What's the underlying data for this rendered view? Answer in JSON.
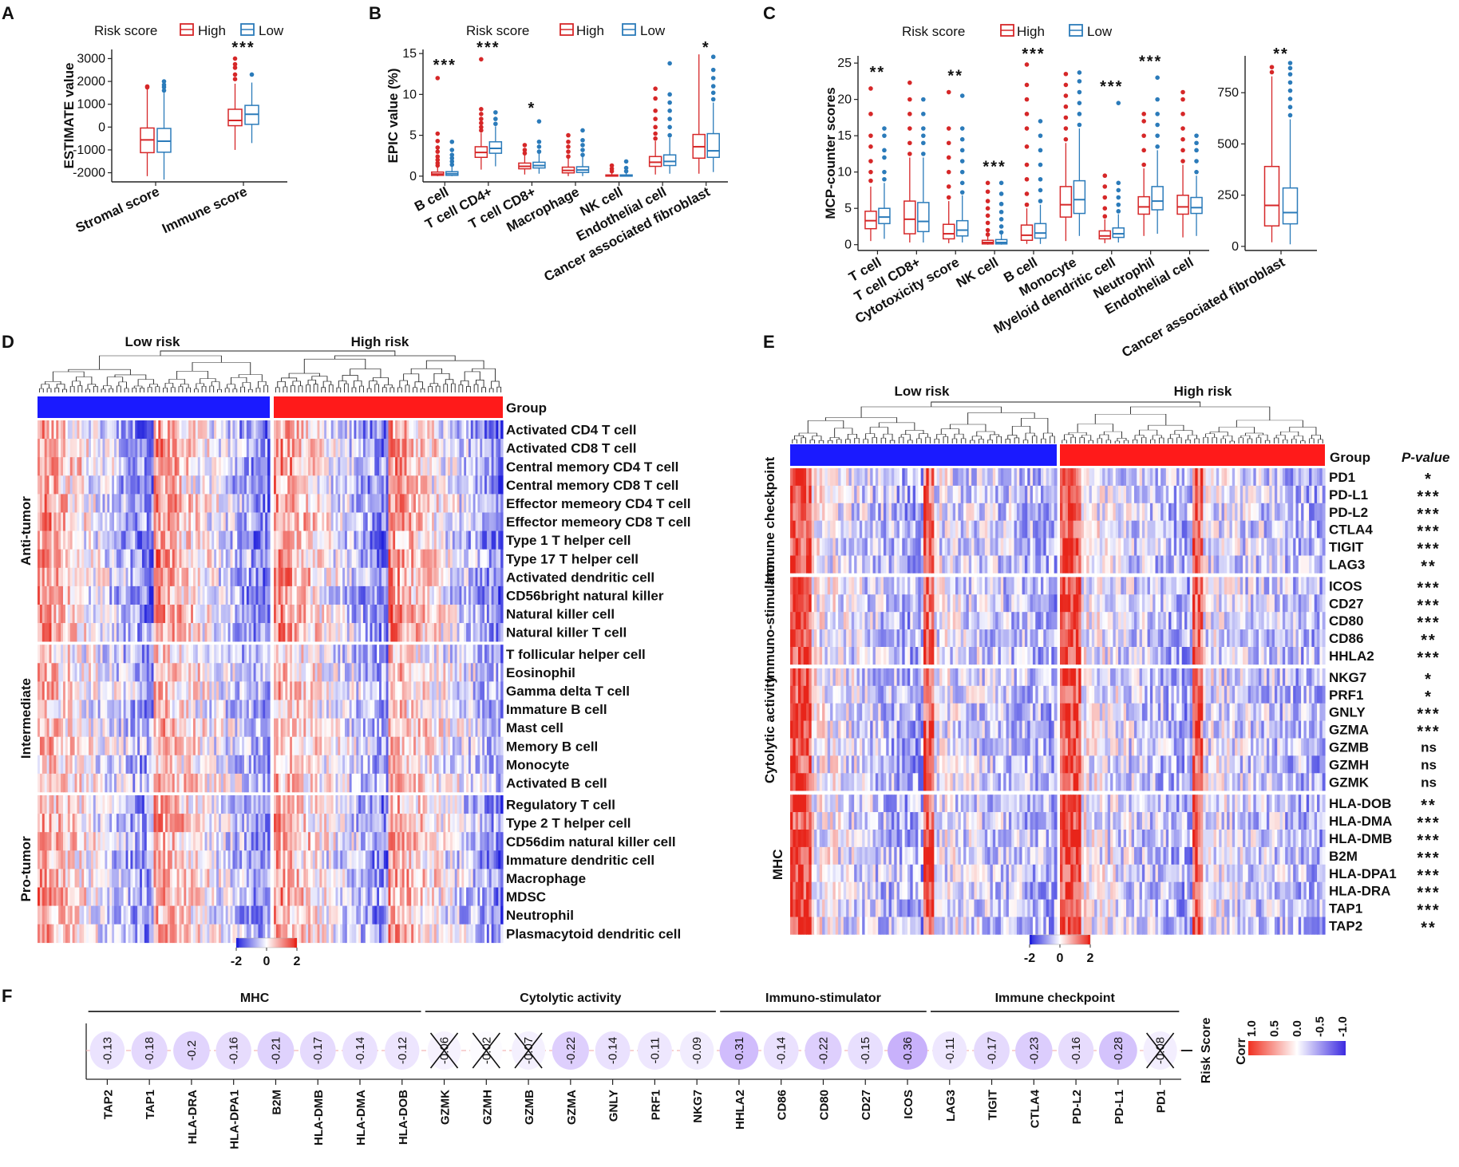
{
  "colors": {
    "high": "#d62728",
    "low": "#2b7bba",
    "hm_neg": "#2222dd",
    "hm_mid": "#ffffff",
    "hm_pos": "#e8251a"
  },
  "legend": {
    "title": "Risk score",
    "high": "High",
    "low": "Low"
  },
  "panels": {
    "a": "A",
    "b": "B",
    "c": "C",
    "d": "D",
    "e": "E",
    "f": "F"
  },
  "chart_data": [
    {
      "id": "A",
      "type": "box",
      "ylabel": "ESTIMATE value",
      "yticks": [
        -2000,
        -1000,
        0,
        1000,
        2000,
        3000
      ],
      "ylim": [
        -2400,
        3400
      ],
      "categories": [
        "Stromal score",
        "Immune score"
      ],
      "series": [
        {
          "name": "High",
          "boxes": [
            [
              -2150,
              -1120,
              -560,
              -40,
              1700
            ],
            [
              -1000,
              60,
              290,
              780,
              1900
            ]
          ],
          "outliers": [
            [
              1780,
              1740
            ],
            [
              2100,
              2300,
              2600,
              2750,
              3000
            ]
          ]
        },
        {
          "name": "Low",
          "boxes": [
            [
              -2300,
              -1100,
              -620,
              -60,
              1500
            ],
            [
              -700,
              120,
              560,
              950,
              1950
            ]
          ],
          "outliers": [
            [
              1600,
              1750,
              1850,
              2000
            ],
            [
              2300
            ]
          ]
        }
      ],
      "significance": [
        "",
        "***"
      ]
    },
    {
      "id": "B",
      "type": "box",
      "ylabel": "EPIC value (%)",
      "yticks": [
        0,
        5,
        10,
        15
      ],
      "ylim": [
        -0.7,
        15.5
      ],
      "categories": [
        "B cell",
        "T cell CD4+",
        "T cell CD8+",
        "Macrophage",
        "NK cell",
        "Endothelial cell",
        "Cancer associated fibroblast"
      ],
      "series": [
        {
          "name": "High",
          "boxes": [
            [
              0,
              0.1,
              0.25,
              0.5,
              1.2
            ],
            [
              0.8,
              2.3,
              2.9,
              3.6,
              5.3
            ],
            [
              0.2,
              0.9,
              1.2,
              1.6,
              2.6
            ],
            [
              0,
              0.4,
              0.7,
              1.1,
              2.2
            ],
            [
              0,
              0,
              0.05,
              0.15,
              0.4
            ],
            [
              0.2,
              1.2,
              1.7,
              2.4,
              4.3
            ],
            [
              0.3,
              2.2,
              3.6,
              5.1,
              14.9
            ]
          ]
        },
        {
          "name": "Low",
          "boxes": [
            [
              0,
              0.1,
              0.3,
              0.55,
              1.2
            ],
            [
              1.2,
              2.8,
              3.4,
              4.2,
              6.1
            ],
            [
              0.3,
              1.0,
              1.3,
              1.7,
              2.8
            ],
            [
              0,
              0.45,
              0.75,
              1.15,
              2.4
            ],
            [
              0,
              0,
              0.05,
              0.15,
              0.4
            ],
            [
              0.3,
              1.3,
              1.8,
              2.6,
              4.7
            ],
            [
              0.5,
              2.3,
              3.1,
              5.2,
              9.0
            ]
          ]
        }
      ],
      "outliers": {
        "High": [
          [
            1.3,
            1.6,
            2.0,
            2.4,
            3.0,
            3.5,
            4.3,
            5.2,
            12.0
          ],
          [
            5.6,
            6.0,
            6.5,
            7.0,
            7.6,
            8.2,
            14.3
          ],
          [
            2.8,
            3.2,
            3.8
          ],
          [
            2.4,
            3.0,
            3.6,
            4.2,
            5.0
          ],
          [
            0.6,
            0.9,
            1.3
          ],
          [
            4.6,
            5.2,
            6.0,
            7.0,
            8.0,
            9.5,
            10.7
          ],
          []
        ],
        "Low": [
          [
            1.4,
            1.8,
            2.2,
            2.6,
            3.2,
            4.2
          ],
          [
            6.4,
            7.0,
            7.8
          ],
          [
            3.0,
            3.6,
            4.2,
            6.7
          ],
          [
            2.6,
            3.2,
            3.8,
            4.4,
            5.6
          ],
          [
            0.6,
            1.0,
            1.8
          ],
          [
            5.0,
            6.0,
            7.0,
            8.0,
            9.0,
            10.0,
            13.8
          ],
          [
            9.4,
            10.2,
            11.0,
            12.0,
            13.0,
            14.6
          ]
        ]
      },
      "significance": [
        "***",
        "***",
        "*",
        "",
        "",
        "",
        "*"
      ]
    },
    {
      "id": "C",
      "type": "box",
      "ylabel": "MCP-counter scores",
      "yticks": [
        0,
        5,
        10,
        15,
        20,
        25
      ],
      "ylim": [
        -0.8,
        26
      ],
      "categories": [
        "T cell",
        "T cell CD8+",
        "Cytotoxicity score",
        "NK cell",
        "B cell",
        "Monocyte",
        "Myeloid dendritic cell",
        "Neutrophil",
        "Endothelial cell"
      ],
      "series": [
        {
          "name": "High",
          "boxes": [
            [
              0.5,
              2.2,
              3.3,
              4.6,
              8.0
            ],
            [
              0.3,
              1.5,
              3.5,
              6.0,
              12.0
            ],
            [
              0.2,
              0.8,
              1.5,
              2.8,
              6.0
            ],
            [
              0,
              0.1,
              0.3,
              0.6,
              1.2
            ],
            [
              0.1,
              0.6,
              1.3,
              2.7,
              5.0
            ],
            [
              0.5,
              3.8,
              5.5,
              8.0,
              14.0
            ],
            [
              0.2,
              0.8,
              1.2,
              1.9,
              3.5
            ],
            [
              1.2,
              4.2,
              5.2,
              6.6,
              10.5
            ],
            [
              1.0,
              4.2,
              5.2,
              6.8,
              11.0
            ]
          ]
        },
        {
          "name": "Low",
          "boxes": [
            [
              0.8,
              2.9,
              3.8,
              5.0,
              8.5
            ],
            [
              0.3,
              1.8,
              3.2,
              5.8,
              12.0
            ],
            [
              0.3,
              1.2,
              2.0,
              3.3,
              6.8
            ],
            [
              0,
              0.1,
              0.3,
              0.7,
              1.5
            ],
            [
              0.1,
              0.9,
              1.6,
              2.9,
              5.5
            ],
            [
              1.2,
              4.3,
              6.2,
              8.8,
              16.0
            ],
            [
              0.3,
              1.0,
              1.5,
              2.3,
              4.2
            ],
            [
              1.5,
              4.8,
              6.0,
              8.0,
              13.0
            ],
            [
              1.2,
              4.3,
              5.1,
              6.5,
              9.5
            ]
          ]
        }
      ],
      "outliers": {
        "High": [
          [
            8.8,
            10.0,
            11.5,
            13.5,
            15.0,
            18.0,
            21.5
          ],
          [
            12.5,
            14.0,
            16.0,
            18.0,
            20.0,
            22.3
          ],
          [
            6.5,
            8.0,
            10.0,
            12.0,
            14.0,
            16.0,
            21.0
          ],
          [
            1.4,
            2.0,
            3.0,
            4.0,
            5.0,
            6.0,
            7.3,
            8.5
          ],
          [
            5.5,
            7.0,
            9.0,
            11.0,
            13.5,
            16.0,
            18.0,
            20.0,
            22.0,
            24.8
          ],
          [
            14.5,
            16.0,
            17.5,
            19.0,
            20.5,
            22.0,
            23.5
          ],
          [
            3.9,
            5.0,
            6.5,
            8.0,
            9.5
          ],
          [
            11.0,
            13.0,
            15.0,
            17.0,
            18.0
          ],
          [
            11.5,
            13.0,
            14.5,
            16.0,
            18.0,
            20.0,
            21.0
          ]
        ],
        "Low": [
          [
            9.0,
            10.0,
            12.0,
            13.0,
            15.0,
            16.0
          ],
          [
            12.5,
            14.0,
            15.0,
            16.0,
            18.0,
            20.0
          ],
          [
            7.2,
            8.5,
            10.0,
            11.5,
            13.0,
            14.5,
            16.0,
            20.5
          ],
          [
            1.7,
            2.5,
            3.5,
            4.5,
            5.6,
            7.0,
            8.5
          ],
          [
            6.0,
            7.5,
            9.0,
            11.0,
            13.0,
            15.0,
            17.0
          ],
          [
            16.5,
            18.0,
            19.5,
            21.0,
            22.5,
            23.7
          ],
          [
            4.6,
            5.5,
            6.5,
            7.5,
            8.5,
            19.5
          ],
          [
            13.5,
            15.0,
            16.5,
            18.0,
            20.0,
            23.0
          ],
          [
            10.0,
            11.5,
            13.0,
            14.0,
            15.0
          ]
        ]
      },
      "significance": [
        "**",
        "",
        "**",
        "***",
        "***",
        "",
        "***",
        "***",
        ""
      ]
    },
    {
      "id": "C2",
      "type": "box",
      "ylabel": "",
      "yticks": [
        0,
        250,
        500,
        750
      ],
      "ylim": [
        -20,
        930
      ],
      "categories": [
        "Cancer associated fibroblast"
      ],
      "series": [
        {
          "name": "High",
          "boxes": [
            [
              20,
              100,
              200,
              390,
              830
            ]
          ],
          "outliers": [
            [
              850,
              875
            ]
          ]
        },
        {
          "name": "Low",
          "boxes": [
            [
              10,
              110,
              165,
              285,
              620
            ]
          ],
          "outliers": [
            [
              640,
              680,
              720,
              760,
              800,
              840,
              870,
              895
            ]
          ]
        }
      ],
      "significance": [
        "**"
      ]
    },
    {
      "id": "D",
      "type": "heatmap",
      "group_labels": [
        "Low risk",
        "High risk"
      ],
      "group_title": "Group",
      "row_groups": [
        "Anti-tumor",
        "Intermediate",
        "Pro-tumor"
      ],
      "rows": [
        "Activated CD4 T cell",
        "Activated CD8 T cell",
        "Central memory CD4 T cell",
        "Central memory CD8 T cell",
        "Effector memeory CD4 T cell",
        "Effector memeory CD8 T cell",
        "Type 1 T helper cell",
        "Type 17 T helper cell",
        "Activated dendritic cell",
        "CD56bright natural killer",
        "Natural killer cell",
        "Natural killer T cell",
        "T follicular helper cell",
        "Eosinophil",
        "Gamma delta T cell",
        "Immature  B cell",
        "Mast cell",
        "Memory B cell",
        "Monocyte",
        "Activated B cell",
        "Regulatory T cell",
        "Type 2 T helper cell",
        "CD56dim natural killer cell",
        "Immature dendritic cell",
        "Macrophage",
        "MDSC",
        "Neutrophil",
        "Plasmacytoid dendritic cell"
      ],
      "row_group_sizes": [
        12,
        8,
        8
      ],
      "colorbar": {
        "ticks": [
          "-2",
          "0",
          "2"
        ]
      }
    },
    {
      "id": "E",
      "type": "heatmap",
      "group_labels": [
        "Low risk",
        "High risk"
      ],
      "group_title": "Group",
      "pvalue_title": "P-value",
      "row_groups": [
        "Immune checkpoint",
        "Immuno-stimulator",
        "Cytolytic activity",
        "MHC"
      ],
      "rows": [
        "PD1",
        "PD-L1",
        "PD-L2",
        "CTLA4",
        "TIGIT",
        "LAG3",
        "ICOS",
        "CD27",
        "CD80",
        "CD86",
        "HHLA2",
        "NKG7",
        "PRF1",
        "GNLY",
        "GZMA",
        "GZMB",
        "GZMH",
        "GZMK",
        "HLA-DOB",
        "HLA-DMA",
        "HLA-DMB",
        "B2M",
        "HLA-DPA1",
        "HLA-DRA",
        "TAP1",
        "TAP2"
      ],
      "pvalues": [
        "*",
        "***",
        "***",
        "***",
        "***",
        "**",
        "***",
        "***",
        "***",
        "**",
        "***",
        "*",
        "*",
        "***",
        "***",
        "ns",
        "ns",
        "ns",
        "**",
        "***",
        "***",
        "***",
        "***",
        "***",
        "***",
        "**"
      ],
      "row_group_sizes": [
        6,
        5,
        7,
        8
      ],
      "colorbar": {
        "ticks": [
          "-2",
          "0",
          "2"
        ]
      }
    },
    {
      "id": "F",
      "type": "correlation",
      "row_label": "Risk Score",
      "group_headers": [
        "MHC",
        "Cytolytic activity",
        "Immuno-stimulator",
        "Immune checkpoint"
      ],
      "group_sizes": [
        8,
        7,
        5,
        6
      ],
      "genes": [
        "TAP2",
        "TAP1",
        "HLA-DRA",
        "HLA-DPA1",
        "B2M",
        "HLA-DMB",
        "HLA-DMA",
        "HLA-DOB",
        "GZMK",
        "GZMH",
        "GZMB",
        "GZMA",
        "GNLY",
        "PRF1",
        "NKG7",
        "HHLA2",
        "CD86",
        "CD80",
        "CD27",
        "ICOS",
        "LAG3",
        "TIGIT",
        "CTLA4",
        "PD-L2",
        "PD-L1",
        "PD1"
      ],
      "values": [
        -0.13,
        -0.18,
        -0.2,
        -0.16,
        -0.21,
        -0.17,
        -0.14,
        -0.12,
        -0.06,
        -0.02,
        -0.07,
        -0.22,
        -0.14,
        -0.11,
        -0.09,
        -0.31,
        -0.14,
        -0.22,
        -0.15,
        -0.36,
        -0.11,
        -0.17,
        -0.23,
        -0.16,
        -0.28,
        -0.08
      ],
      "value_labels": [
        "-0.13",
        "-0.18",
        "-0.2",
        "-0.16",
        "-0.21",
        "-0.17",
        "-0.14",
        "-0.12",
        "-0.06",
        "-0.02",
        "-0.07",
        "-0.22",
        "-0.14",
        "-0.11",
        "-0.09",
        "-0.31",
        "-0.14",
        "-0.22",
        "-0.15",
        "-0.36",
        "-0.11",
        "-0.17",
        "-0.23",
        "-0.16",
        "-0.28",
        "-0.08"
      ],
      "non_significant": [
        "GZMK",
        "GZMH",
        "GZMB",
        "PD1"
      ],
      "colorbar": {
        "title": "Corr",
        "ticks": [
          "1.0",
          "0.5",
          "0.0",
          "-0.5",
          "-1.0"
        ]
      }
    }
  ]
}
